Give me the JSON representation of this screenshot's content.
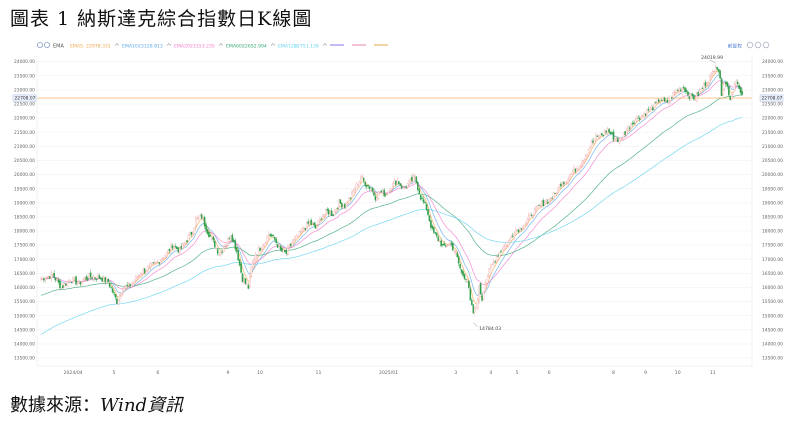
{
  "figure": {
    "title": "圖表 1 納斯達克綜合指數日K線圖",
    "source_prefix": "數據來源：",
    "source_name": "Wind",
    "source_suffix": "資訊"
  },
  "legend": {
    "ema_label": "EMA",
    "items": [
      {
        "label": "EMA5",
        "value": "22978.331",
        "color": "#f4a64a"
      },
      {
        "label": "EMA10",
        "value": "23128.813",
        "color": "#5fa8e8"
      },
      {
        "label": "EMA20",
        "value": "23153.235",
        "color": "#f27ac9"
      },
      {
        "label": "EMA60",
        "value": "22652.994",
        "color": "#3aa776"
      },
      {
        "label": "EMA120",
        "value": "22751.139",
        "color": "#5ed1f0"
      }
    ],
    "extra_colors": [
      "#c7b7f2",
      "#f5c1d9",
      "#f2d3a3"
    ],
    "right_label": "前复权"
  },
  "chart_data": {
    "type": "candlestick",
    "y_axis": {
      "min": 13500,
      "max": 24200,
      "step": 500,
      "tick_labels": [
        "13500.00",
        "14000.00",
        "14500.00",
        "15000.00",
        "15500.00",
        "16000.00",
        "16500.00",
        "17000.00",
        "17500.00",
        "18000.00",
        "18500.00",
        "19000.00",
        "19500.00",
        "20000.00",
        "20500.00",
        "21000.00",
        "21500.00",
        "22000.00",
        "22500.00",
        "23000.00",
        "23500.00",
        "24000.00"
      ]
    },
    "x_labels": [
      "2024/04",
      "5",
      "6",
      "9",
      "10",
      "11",
      "2025/01",
      "3",
      "4",
      "5",
      "6",
      "8",
      "9",
      "10",
      "11"
    ],
    "current_price": "22708.07",
    "annotations": [
      {
        "text": "24019.99",
        "value": 24019.99
      },
      {
        "text": "14784.03",
        "value": 14784.03
      }
    ],
    "close_path": [
      [
        0,
        16300
      ],
      [
        8,
        16450
      ],
      [
        14,
        16000
      ],
      [
        20,
        16300
      ],
      [
        26,
        16150
      ],
      [
        33,
        16400
      ],
      [
        40,
        16350
      ],
      [
        46,
        16200
      ],
      [
        52,
        15500
      ],
      [
        56,
        16000
      ],
      [
        62,
        16100
      ],
      [
        68,
        16500
      ],
      [
        74,
        16700
      ],
      [
        80,
        16900
      ],
      [
        86,
        17200
      ],
      [
        90,
        17500
      ],
      [
        95,
        17300
      ],
      [
        100,
        17700
      ],
      [
        104,
        18000
      ],
      [
        106,
        18400
      ],
      [
        110,
        18500
      ],
      [
        114,
        18000
      ],
      [
        118,
        17600
      ],
      [
        122,
        17200
      ],
      [
        126,
        17500
      ],
      [
        130,
        17900
      ],
      [
        134,
        17300
      ],
      [
        138,
        16300
      ],
      [
        142,
        16000
      ],
      [
        144,
        16700
      ],
      [
        147,
        17200
      ],
      [
        150,
        17400
      ],
      [
        153,
        17600
      ],
      [
        156,
        17900
      ],
      [
        160,
        17700
      ],
      [
        164,
        17300
      ],
      [
        168,
        17200
      ],
      [
        172,
        17600
      ],
      [
        176,
        17800
      ],
      [
        180,
        18100
      ],
      [
        184,
        18300
      ],
      [
        188,
        18100
      ],
      [
        192,
        18500
      ],
      [
        196,
        18700
      ],
      [
        200,
        18600
      ],
      [
        204,
        19000
      ],
      [
        208,
        18900
      ],
      [
        212,
        19200
      ],
      [
        216,
        19600
      ],
      [
        219,
        19900
      ],
      [
        222,
        19700
      ],
      [
        226,
        19500
      ],
      [
        229,
        19200
      ],
      [
        232,
        19400
      ],
      [
        236,
        19300
      ],
      [
        240,
        19600
      ],
      [
        244,
        19800
      ],
      [
        248,
        19500
      ],
      [
        252,
        19700
      ],
      [
        256,
        19900
      ],
      [
        260,
        19200
      ],
      [
        264,
        18800
      ],
      [
        268,
        18000
      ],
      [
        272,
        17700
      ],
      [
        276,
        17400
      ],
      [
        280,
        17600
      ],
      [
        284,
        17200
      ],
      [
        288,
        16500
      ],
      [
        292,
        16300
      ],
      [
        294,
        15500
      ],
      [
        296,
        15100
      ],
      [
        298,
        15300
      ],
      [
        300,
        16000
      ],
      [
        302,
        15600
      ],
      [
        304,
        16200
      ],
      [
        308,
        16700
      ],
      [
        312,
        17100
      ],
      [
        316,
        17400
      ],
      [
        320,
        17600
      ],
      [
        324,
        18000
      ],
      [
        328,
        18100
      ],
      [
        332,
        18300
      ],
      [
        336,
        18600
      ],
      [
        340,
        18800
      ],
      [
        344,
        19000
      ],
      [
        348,
        19100
      ],
      [
        352,
        19300
      ],
      [
        356,
        19700
      ],
      [
        360,
        19800
      ],
      [
        364,
        20100
      ],
      [
        368,
        20300
      ],
      [
        372,
        20600
      ],
      [
        376,
        21000
      ],
      [
        380,
        21300
      ],
      [
        384,
        21400
      ],
      [
        388,
        21600
      ],
      [
        392,
        21300
      ],
      [
        396,
        21200
      ],
      [
        400,
        21500
      ],
      [
        404,
        21800
      ],
      [
        408,
        22000
      ],
      [
        412,
        22100
      ],
      [
        416,
        22300
      ],
      [
        420,
        22400
      ],
      [
        424,
        22700
      ],
      [
        428,
        22500
      ],
      [
        432,
        22800
      ],
      [
        436,
        23000
      ],
      [
        440,
        23100
      ],
      [
        444,
        22800
      ],
      [
        448,
        22700
      ],
      [
        452,
        23000
      ],
      [
        456,
        23300
      ],
      [
        459,
        23500
      ],
      [
        462,
        23900
      ],
      [
        464,
        23700
      ],
      [
        466,
        22900
      ],
      [
        468,
        23300
      ],
      [
        470,
        23100
      ],
      [
        472,
        22700
      ],
      [
        474,
        23000
      ],
      [
        476,
        23400
      ],
      [
        478,
        23000
      ],
      [
        480,
        22708
      ]
    ],
    "series": [
      {
        "name": "EMA5",
        "color": "#f4a64a",
        "smoothing": 5
      },
      {
        "name": "EMA10",
        "color": "#5fa8e8",
        "smoothing": 10
      },
      {
        "name": "EMA20",
        "color": "#f27ac9",
        "smoothing": 20
      },
      {
        "name": "EMA60",
        "color": "#3aa776",
        "smoothing": 60
      },
      {
        "name": "EMA120",
        "color": "#5ed1f0",
        "smoothing": 120
      }
    ],
    "up_color": "#f2a5a5",
    "down_color": "#2e9e4a"
  }
}
